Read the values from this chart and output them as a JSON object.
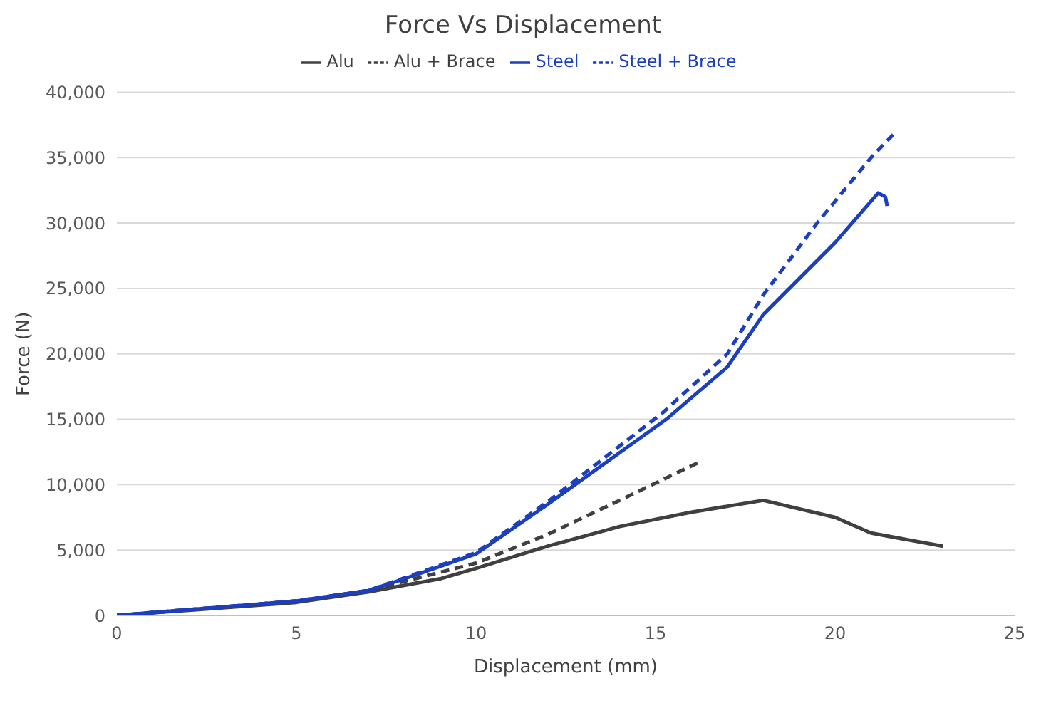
{
  "chart_data": {
    "type": "line",
    "title": "Force Vs Displacement",
    "xlabel": "Displacement (mm)",
    "ylabel": "Force (N)",
    "xlim": [
      0,
      25
    ],
    "xticks": [
      0,
      5,
      10,
      15,
      20,
      25
    ],
    "ylim": [
      0,
      40000
    ],
    "yticks": [
      {
        "value": 0,
        "label": "0"
      },
      {
        "value": 5000,
        "label": "5,000"
      },
      {
        "value": 10000,
        "label": "10,000"
      },
      {
        "value": 15000,
        "label": "15,000"
      },
      {
        "value": 20000,
        "label": "20,000"
      },
      {
        "value": 25000,
        "label": "25,000"
      },
      {
        "value": 30000,
        "label": "30,000"
      },
      {
        "value": 35000,
        "label": "35,000"
      },
      {
        "value": 40000,
        "label": "40,000"
      }
    ],
    "grid": "y",
    "legend": "top",
    "marker": "none",
    "series": [
      {
        "name": "Alu",
        "color": "#404040",
        "line_style": "solid",
        "x": [
          0,
          2,
          5,
          7,
          9,
          10,
          12,
          14,
          16,
          18,
          20,
          21,
          23
        ],
        "values": [
          0,
          400,
          1000,
          1800,
          2800,
          3600,
          5300,
          6800,
          7900,
          8800,
          7500,
          6300,
          5300
        ]
      },
      {
        "name": "Alu + Brace",
        "color": "#404040",
        "line_style": "dashed",
        "x": [
          0,
          5,
          7,
          10,
          12,
          14,
          16.2
        ],
        "values": [
          0,
          1100,
          1900,
          4000,
          6200,
          8800,
          11700
        ]
      },
      {
        "name": "Steel",
        "color": "#1c3fc0",
        "line_style": "solid",
        "x": [
          0,
          5,
          7,
          8,
          10,
          12,
          15.3,
          17,
          18,
          20,
          21.2,
          21.4,
          21.45
        ],
        "values": [
          0,
          1100,
          1900,
          2800,
          4700,
          8500,
          15000,
          19000,
          23000,
          28500,
          32300,
          32000,
          31300
        ]
      },
      {
        "name": "Steel + Brace",
        "color": "#1c3fc0",
        "line_style": "dashed",
        "x": [
          0,
          5,
          7,
          10,
          12,
          15.2,
          17,
          18,
          19.5,
          21,
          21.7
        ],
        "values": [
          0,
          1100,
          1900,
          4800,
          8700,
          15500,
          20000,
          24500,
          30000,
          35000,
          37000
        ]
      }
    ]
  }
}
